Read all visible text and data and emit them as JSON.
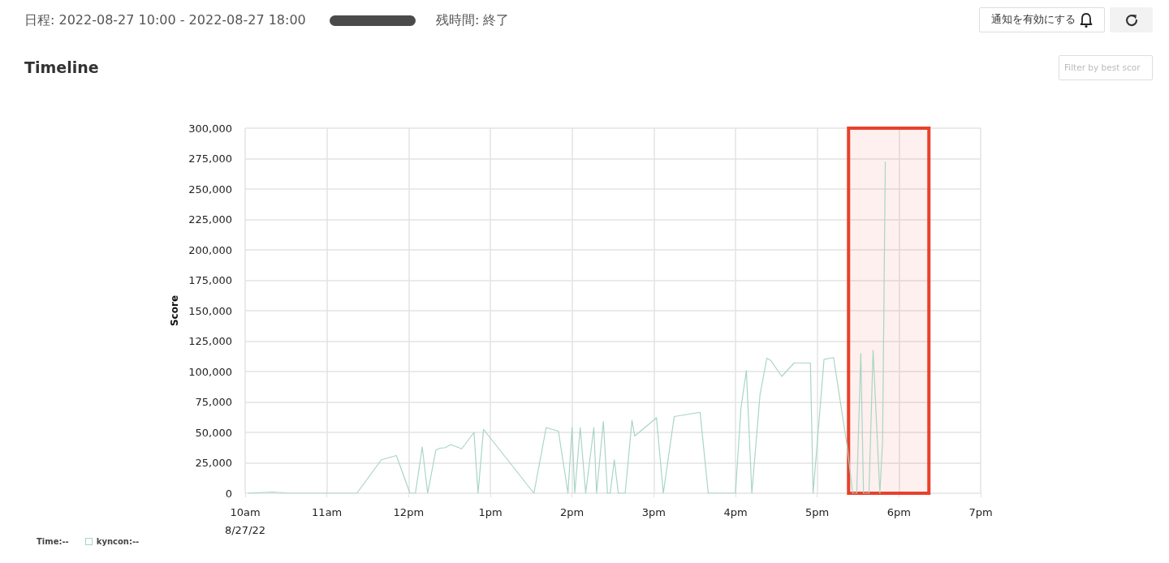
{
  "chart_data": {
    "type": "line",
    "title": "Timeline",
    "ylabel": "Score",
    "annotations": [
      "日程: 2022-08-27 10:00 - 2022-08-27 18:00",
      "残時間: 終了",
      "通知を有効にする",
      "Filter by best scor",
      "Time:--"
    ],
    "xlim": [
      "2022-08-27T10:00",
      "2022-08-27T19:00"
    ],
    "xticks": [
      {
        "value": "2022-08-27T10:00",
        "label": "10am\n8/27/22"
      },
      {
        "value": "2022-08-27T11:00",
        "label": "11am"
      },
      {
        "value": "2022-08-27T12:00",
        "label": "12pm"
      },
      {
        "value": "2022-08-27T13:00",
        "label": "1pm"
      },
      {
        "value": "2022-08-27T14:00",
        "label": "2pm"
      },
      {
        "value": "2022-08-27T15:00",
        "label": "3pm"
      },
      {
        "value": "2022-08-27T16:00",
        "label": "4pm"
      },
      {
        "value": "2022-08-27T17:00",
        "label": "5pm"
      },
      {
        "value": "2022-08-27T18:00",
        "label": "6pm"
      },
      {
        "value": "2022-08-27T19:00",
        "label": "7pm"
      }
    ],
    "ylim": [
      0,
      300000
    ],
    "yticks": [
      {
        "value": 0,
        "label": "0"
      },
      {
        "value": 25000,
        "label": "25,000"
      },
      {
        "value": 50000,
        "label": "50,000"
      },
      {
        "value": 75000,
        "label": "75,000"
      },
      {
        "value": 100000,
        "label": "100,000"
      },
      {
        "value": 125000,
        "label": "125,000"
      },
      {
        "value": 150000,
        "label": "150,000"
      },
      {
        "value": 175000,
        "label": "175,000"
      },
      {
        "value": 200000,
        "label": "200,000"
      },
      {
        "value": 225000,
        "label": "225,000"
      },
      {
        "value": 250000,
        "label": "250,000"
      },
      {
        "value": 275000,
        "label": "275,000"
      },
      {
        "value": 300000,
        "label": "300,000"
      }
    ],
    "grid": true,
    "legend": "bottom left",
    "marker": "none",
    "line_style": "solid",
    "bands": [
      {
        "axis": "x",
        "from": "2022-08-27T17:23",
        "to": "2022-08-27T18:22",
        "color": "#e8412c"
      }
    ],
    "series": [
      {
        "name": "kyncon:--",
        "color": "#a8d5c5",
        "x": [
          "2022-08-27T10:02",
          "2022-08-27T10:20",
          "2022-08-27T10:31",
          "2022-08-27T11:22",
          "2022-08-27T11:40",
          "2022-08-27T11:51",
          "2022-08-27T12:01",
          "2022-08-27T12:05",
          "2022-08-27T12:10",
          "2022-08-27T12:14",
          "2022-08-27T12:20",
          "2022-08-27T12:23",
          "2022-08-27T12:27",
          "2022-08-27T12:31",
          "2022-08-27T12:39",
          "2022-08-27T12:48",
          "2022-08-27T12:51",
          "2022-08-27T12:55",
          "2022-08-27T13:32",
          "2022-08-27T13:41",
          "2022-08-27T13:50",
          "2022-08-27T13:57",
          "2022-08-27T14:00",
          "2022-08-27T14:02",
          "2022-08-27T14:06",
          "2022-08-27T14:10",
          "2022-08-27T14:16",
          "2022-08-27T14:18",
          "2022-08-27T14:23",
          "2022-08-27T14:26",
          "2022-08-27T14:28",
          "2022-08-27T14:31",
          "2022-08-27T14:34",
          "2022-08-27T14:39",
          "2022-08-27T14:44",
          "2022-08-27T14:46",
          "2022-08-27T15:02",
          "2022-08-27T15:07",
          "2022-08-27T15:15",
          "2022-08-27T15:34",
          "2022-08-27T15:40",
          "2022-08-27T16:00",
          "2022-08-27T16:04",
          "2022-08-27T16:08",
          "2022-08-27T16:12",
          "2022-08-27T16:18",
          "2022-08-27T16:23",
          "2022-08-27T16:26",
          "2022-08-27T16:34",
          "2022-08-27T16:43",
          "2022-08-27T16:55",
          "2022-08-27T16:57",
          "2022-08-27T17:05",
          "2022-08-27T17:12",
          "2022-08-27T17:22",
          "2022-08-27T17:26",
          "2022-08-27T17:29",
          "2022-08-27T17:32",
          "2022-08-27T17:34",
          "2022-08-27T17:38",
          "2022-08-27T17:41",
          "2022-08-27T17:46",
          "2022-08-27T17:48",
          "2022-08-27T17:50"
        ],
        "values": [
          0,
          1000,
          0,
          0,
          27500,
          31000,
          0,
          0,
          38000,
          0,
          35500,
          37000,
          37500,
          40000,
          36500,
          50000,
          0,
          52500,
          0,
          54000,
          51000,
          0,
          54000,
          0,
          54000,
          0,
          54000,
          0,
          59000,
          0,
          0,
          27500,
          0,
          0,
          60000,
          47000,
          62000,
          0,
          63000,
          66500,
          0,
          0,
          70000,
          101000,
          0,
          81000,
          111000,
          109000,
          96000,
          107000,
          107000,
          0,
          110000,
          111500,
          38500,
          0,
          0,
          115000,
          0,
          0,
          117500,
          0,
          43000,
          272500
        ]
      }
    ]
  }
}
